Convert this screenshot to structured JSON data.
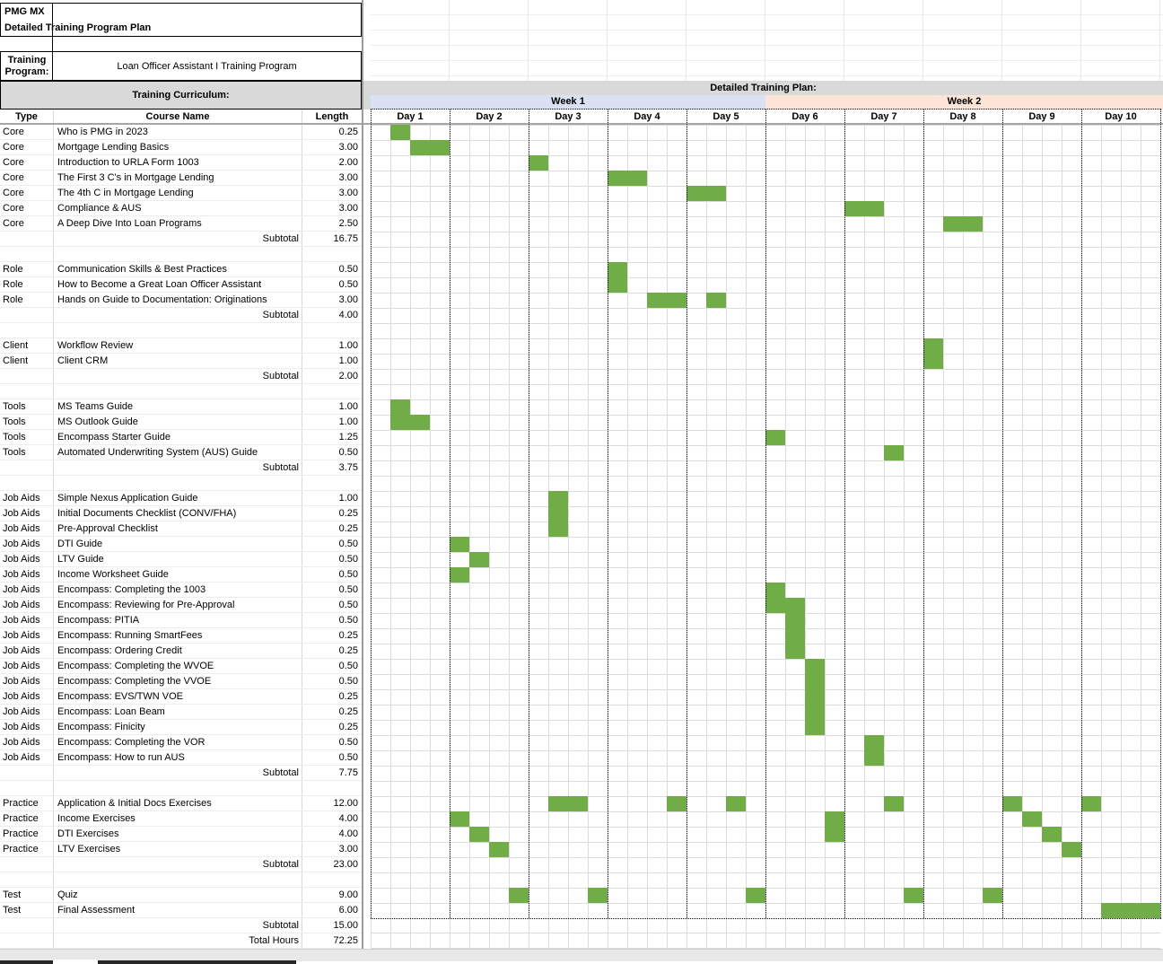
{
  "header": {
    "company": "PMG MX",
    "doc_title": "Detailed Training Program Plan"
  },
  "training_program": {
    "label": "Training Program:",
    "value": "Loan Officer Assistant I Training Program"
  },
  "curriculum": {
    "title": "Training Curriculum:",
    "columns": {
      "type": "Type",
      "name": "Course Name",
      "length": "Length"
    },
    "rows": [
      {
        "kind": "item",
        "type": "Core",
        "name": "Who is PMG in 2023",
        "length": "0.25",
        "bars": [
          [
            1,
            1
          ]
        ]
      },
      {
        "kind": "item",
        "type": "Core",
        "name": "Mortgage Lending Basics",
        "length": "3.00",
        "bars": [
          [
            2,
            2
          ]
        ]
      },
      {
        "kind": "item",
        "type": "Core",
        "name": "Introduction to URLA Form 1003",
        "length": "2.00",
        "bars": [
          [
            8,
            1
          ]
        ]
      },
      {
        "kind": "item",
        "type": "Core",
        "name": "The First 3 C's in Mortgage Lending",
        "length": "3.00",
        "bars": [
          [
            12,
            2
          ]
        ]
      },
      {
        "kind": "item",
        "type": "Core",
        "name": "The 4th C in Mortgage Lending",
        "length": "3.00",
        "bars": [
          [
            16,
            2
          ]
        ]
      },
      {
        "kind": "item",
        "type": "Core",
        "name": "Compliance & AUS",
        "length": "3.00",
        "bars": [
          [
            24,
            2
          ]
        ]
      },
      {
        "kind": "item",
        "type": "Core",
        "name": "A Deep Dive Into Loan Programs",
        "length": "2.50",
        "bars": [
          [
            29,
            2
          ]
        ]
      },
      {
        "kind": "subtotal",
        "label": "Subtotal",
        "length": "16.75"
      },
      {
        "kind": "blank"
      },
      {
        "kind": "item",
        "type": "Role",
        "name": "Communication Skills & Best Practices",
        "length": "0.50",
        "bars": [
          [
            12,
            1
          ]
        ]
      },
      {
        "kind": "item",
        "type": "Role",
        "name": "How to Become a Great Loan Officer Assistant",
        "length": "0.50",
        "bars": [
          [
            12,
            1
          ]
        ]
      },
      {
        "kind": "item",
        "type": "Role",
        "name": "Hands on Guide to Documentation: Originations",
        "length": "3.00",
        "bars": [
          [
            14,
            2
          ],
          [
            17,
            1
          ]
        ]
      },
      {
        "kind": "subtotal",
        "label": "Subtotal",
        "length": "4.00"
      },
      {
        "kind": "blank"
      },
      {
        "kind": "item",
        "type": "Client",
        "name": "Workflow Review",
        "length": "1.00",
        "bars": [
          [
            28,
            1
          ]
        ]
      },
      {
        "kind": "item",
        "type": "Client",
        "name": "Client CRM",
        "length": "1.00",
        "bars": [
          [
            28,
            1
          ]
        ]
      },
      {
        "kind": "subtotal",
        "label": "Subtotal",
        "length": "2.00"
      },
      {
        "kind": "blank"
      },
      {
        "kind": "item",
        "type": "Tools",
        "name": "MS Teams Guide",
        "length": "1.00",
        "bars": [
          [
            1,
            1
          ]
        ]
      },
      {
        "kind": "item",
        "type": "Tools",
        "name": "MS Outlook Guide",
        "length": "1.00",
        "bars": [
          [
            1,
            2
          ]
        ]
      },
      {
        "kind": "item",
        "type": "Tools",
        "name": "Encompass Starter Guide",
        "length": "1.25",
        "bars": [
          [
            20,
            1
          ]
        ]
      },
      {
        "kind": "item",
        "type": "Tools",
        "name": "Automated Underwriting System (AUS) Guide",
        "length": "0.50",
        "bars": [
          [
            26,
            1
          ]
        ]
      },
      {
        "kind": "subtotal",
        "label": "Subtotal",
        "length": "3.75"
      },
      {
        "kind": "blank"
      },
      {
        "kind": "item",
        "type": "Job Aids",
        "name": "Simple Nexus Application Guide",
        "length": "1.00",
        "bars": [
          [
            9,
            1
          ]
        ]
      },
      {
        "kind": "item",
        "type": "Job Aids",
        "name": "Initial Documents Checklist (CONV/FHA)",
        "length": "0.25",
        "bars": [
          [
            9,
            1
          ]
        ]
      },
      {
        "kind": "item",
        "type": "Job Aids",
        "name": "Pre-Approval Checklist",
        "length": "0.25",
        "bars": [
          [
            9,
            1
          ]
        ]
      },
      {
        "kind": "item",
        "type": "Job Aids",
        "name": "DTI Guide",
        "length": "0.50",
        "bars": [
          [
            4,
            1
          ]
        ]
      },
      {
        "kind": "item",
        "type": "Job Aids",
        "name": "LTV Guide",
        "length": "0.50",
        "bars": [
          [
            5,
            1
          ]
        ]
      },
      {
        "kind": "item",
        "type": "Job Aids",
        "name": "Income Worksheet Guide",
        "length": "0.50",
        "bars": [
          [
            4,
            1
          ]
        ]
      },
      {
        "kind": "item",
        "type": "Job Aids",
        "name": "Encompass: Completing the 1003",
        "length": "0.50",
        "bars": [
          [
            20,
            1
          ]
        ]
      },
      {
        "kind": "item",
        "type": "Job Aids",
        "name": "Encompass: Reviewing for Pre-Approval",
        "length": "0.50",
        "bars": [
          [
            20,
            2
          ]
        ]
      },
      {
        "kind": "item",
        "type": "Job Aids",
        "name": "Encompass: PITIA",
        "length": "0.50",
        "bars": [
          [
            21,
            1
          ]
        ]
      },
      {
        "kind": "item",
        "type": "Job Aids",
        "name": "Encompass: Running SmartFees",
        "length": "0.25",
        "bars": [
          [
            21,
            1
          ]
        ]
      },
      {
        "kind": "item",
        "type": "Job Aids",
        "name": "Encompass: Ordering Credit",
        "length": "0.25",
        "bars": [
          [
            21,
            1
          ]
        ]
      },
      {
        "kind": "item",
        "type": "Job Aids",
        "name": "Encompass: Completing the WVOE",
        "length": "0.50",
        "bars": [
          [
            22,
            1
          ]
        ]
      },
      {
        "kind": "item",
        "type": "Job Aids",
        "name": "Encompass: Completing the VVOE",
        "length": "0.50",
        "bars": [
          [
            22,
            1
          ]
        ]
      },
      {
        "kind": "item",
        "type": "Job Aids",
        "name": "Encompass: EVS/TWN VOE",
        "length": "0.25",
        "bars": [
          [
            22,
            1
          ]
        ]
      },
      {
        "kind": "item",
        "type": "Job Aids",
        "name": "Encompass: Loan Beam",
        "length": "0.25",
        "bars": [
          [
            22,
            1
          ]
        ]
      },
      {
        "kind": "item",
        "type": "Job Aids",
        "name": "Encompass: Finicity",
        "length": "0.25",
        "bars": [
          [
            22,
            1
          ]
        ]
      },
      {
        "kind": "item",
        "type": "Job Aids",
        "name": "Encompass: Completing the VOR",
        "length": "0.50",
        "bars": [
          [
            25,
            1
          ]
        ]
      },
      {
        "kind": "item",
        "type": "Job Aids",
        "name": "Encompass: How to run AUS",
        "length": "0.50",
        "bars": [
          [
            25,
            1
          ]
        ]
      },
      {
        "kind": "subtotal",
        "label": "Subtotal",
        "length": "7.75"
      },
      {
        "kind": "blank"
      },
      {
        "kind": "item",
        "type": "Practice",
        "name": "Application & Initial Docs Exercises",
        "length": "12.00",
        "bars": [
          [
            9,
            2
          ],
          [
            15,
            1
          ],
          [
            18,
            1
          ],
          [
            26,
            1
          ],
          [
            32,
            1
          ],
          [
            36,
            1
          ]
        ]
      },
      {
        "kind": "item",
        "type": "Practice",
        "name": "Income Exercises",
        "length": "4.00",
        "bars": [
          [
            4,
            1
          ],
          [
            23,
            1
          ],
          [
            33,
            1
          ]
        ]
      },
      {
        "kind": "item",
        "type": "Practice",
        "name": "DTI Exercises",
        "length": "4.00",
        "bars": [
          [
            5,
            1
          ],
          [
            23,
            1
          ],
          [
            34,
            1
          ]
        ]
      },
      {
        "kind": "item",
        "type": "Practice",
        "name": "LTV Exercises",
        "length": "3.00",
        "bars": [
          [
            6,
            1
          ],
          [
            35,
            1
          ]
        ]
      },
      {
        "kind": "subtotal",
        "label": "Subtotal",
        "length": "23.00"
      },
      {
        "kind": "blank"
      },
      {
        "kind": "item",
        "type": "Test",
        "name": "Quiz",
        "length": "9.00",
        "bars": [
          [
            7,
            1
          ],
          [
            11,
            1
          ],
          [
            19,
            1
          ],
          [
            27,
            1
          ],
          [
            31,
            1
          ]
        ]
      },
      {
        "kind": "item",
        "type": "Test",
        "name": "Final Assessment",
        "length": "6.00",
        "bars": [
          [
            37,
            3
          ]
        ]
      },
      {
        "kind": "subtotal",
        "label": "Subtotal",
        "length": "15.00"
      },
      {
        "kind": "total",
        "label": "Total Hours",
        "length": "72.25"
      }
    ]
  },
  "plan": {
    "title": "Detailed Training Plan:",
    "weeks": [
      {
        "label": "Week 1"
      },
      {
        "label": "Week 2"
      }
    ],
    "days": [
      "Day 1",
      "Day 2",
      "Day 3",
      "Day 4",
      "Day 5",
      "Day 6",
      "Day 7",
      "Day 8",
      "Day 9",
      "Day 10"
    ],
    "quarters_per_day": 4,
    "bar_note": "bars = [startQuarterCell (0-based, 4 cells per day across 10 days), spanInQuarterCells]"
  },
  "colors": {
    "bar_green": "#70AD47",
    "header_gray": "#D9D9D9",
    "week1_fill": "#D9E1F2",
    "week2_fill": "#FCE4D6",
    "gridline": "#DCDCDC"
  }
}
